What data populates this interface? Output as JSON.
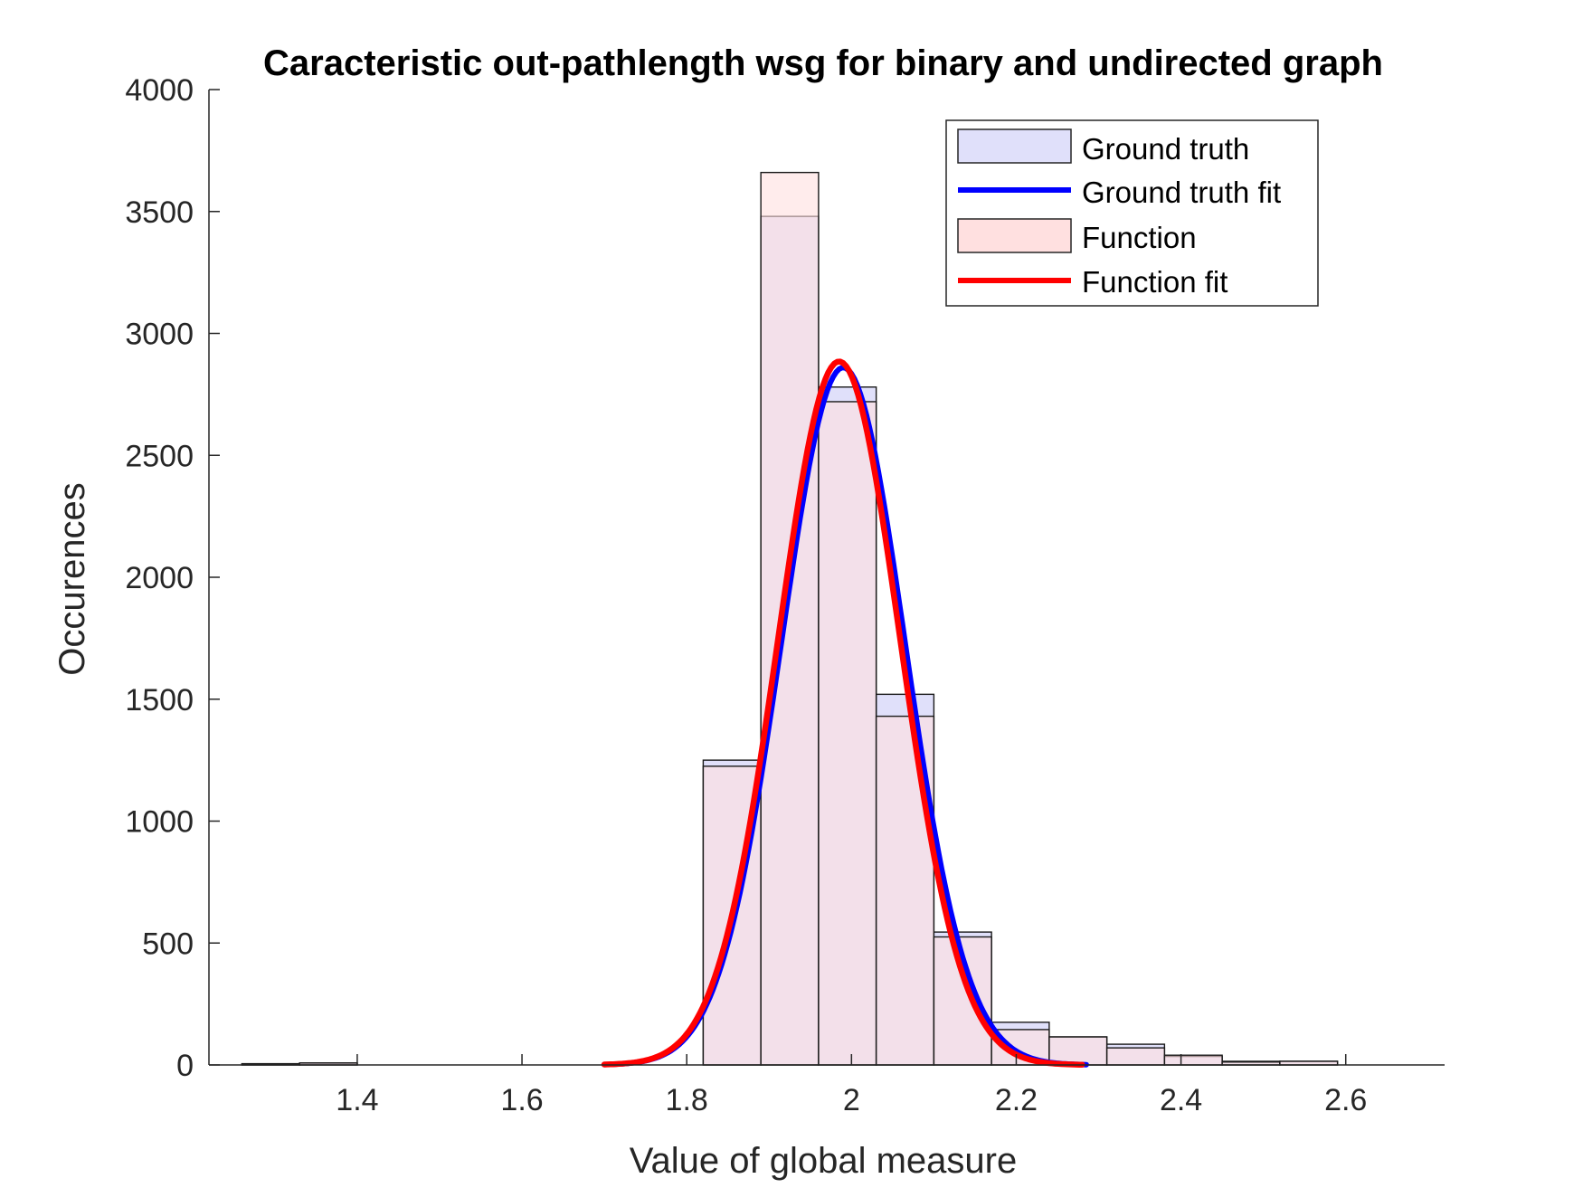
{
  "chart_data": {
    "type": "bar",
    "title": "Caracteristic out-pathlength wsg for binary and undirected graph",
    "xlabel": "Value of global measure",
    "ylabel": "Occurences",
    "xlim": [
      1.22,
      2.72
    ],
    "ylim": [
      0,
      4000
    ],
    "xticks": [
      1.4,
      1.6,
      1.8,
      2.0,
      2.2,
      2.4,
      2.6
    ],
    "xtick_labels": [
      "1.4",
      "1.6",
      "1.8",
      "2",
      "2.2",
      "2.4",
      "2.6"
    ],
    "yticks": [
      0,
      500,
      1000,
      1500,
      2000,
      2500,
      3000,
      3500,
      4000
    ],
    "ytick_labels": [
      "0",
      "500",
      "1000",
      "1500",
      "2000",
      "2500",
      "3000",
      "3500",
      "4000"
    ],
    "grid": false,
    "legend_position": "top-right",
    "bin_width": 0.07,
    "bin_edges": [
      1.26,
      1.33,
      1.4,
      1.47,
      1.54,
      1.61,
      1.68,
      1.75,
      1.82,
      1.89,
      1.96,
      2.03,
      2.1,
      2.17,
      2.24,
      2.31,
      2.38,
      2.45,
      2.52,
      2.59,
      2.66
    ],
    "series": [
      {
        "name": "Ground truth",
        "kind": "histogram",
        "color": "#e0e0fa",
        "values": [
          5,
          8,
          0,
          0,
          0,
          0,
          0,
          0,
          1250,
          3480,
          2780,
          1520,
          545,
          175,
          115,
          85,
          35,
          15,
          15,
          0
        ]
      },
      {
        "name": "Ground truth fit",
        "kind": "fit",
        "color": "#0000ff",
        "mu": 1.99,
        "sigma": 0.075,
        "peak": 2860,
        "x_range": [
          1.7,
          2.285
        ]
      },
      {
        "name": "Function",
        "kind": "histogram",
        "color": "#ffe0e0",
        "values": [
          5,
          8,
          0,
          0,
          0,
          0,
          0,
          0,
          1225,
          3660,
          2720,
          1430,
          525,
          145,
          115,
          70,
          40,
          12,
          15,
          0
        ]
      },
      {
        "name": "Function fit",
        "kind": "fit",
        "color": "#ff0000",
        "mu": 1.985,
        "sigma": 0.074,
        "peak": 2885,
        "x_range": [
          1.7,
          2.28
        ]
      }
    ]
  }
}
